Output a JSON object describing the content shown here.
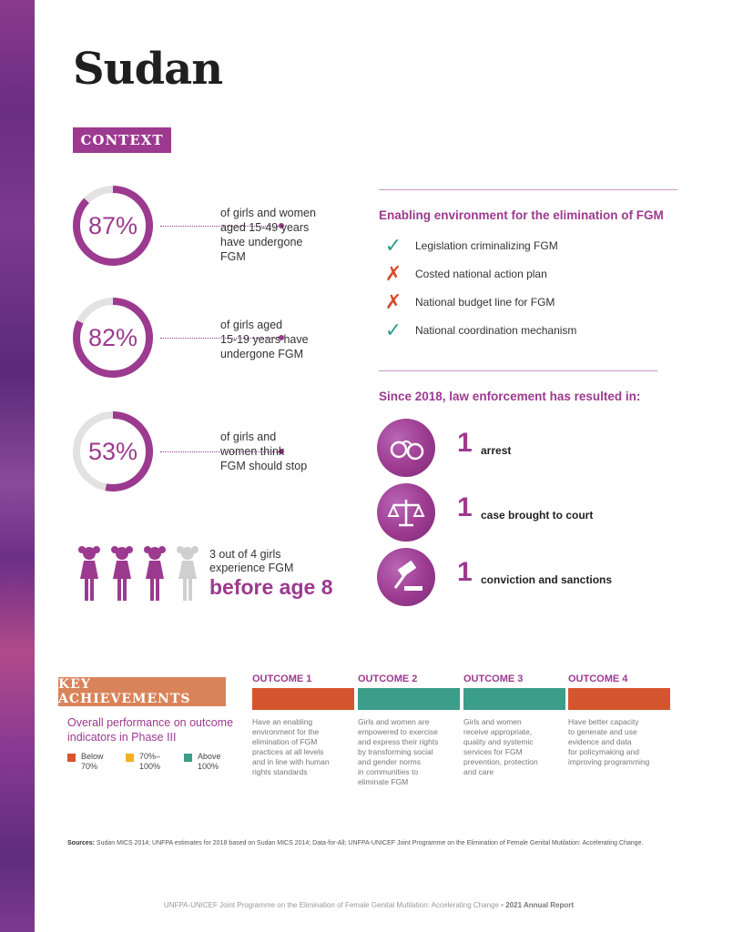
{
  "page": {
    "title": "Sudan"
  },
  "context": {
    "tag": "CONTEXT",
    "stats": [
      {
        "percent": "87%",
        "fraction": 0.87,
        "text": "of girls and women\naged 15-49 years\nhave undergone\nFGM"
      },
      {
        "percent": "82%",
        "fraction": 0.82,
        "text": "of girls aged\n15-19 years have\nundergone FGM"
      },
      {
        "percent": "53%",
        "fraction": 0.53,
        "text": "of girls and\nwomen think\nFGM should stop"
      }
    ],
    "girls": {
      "caption": "3 out of 4 girls\nexperience FGM",
      "emphasis": "before age 8",
      "highlighted_count": 3,
      "total": 4
    }
  },
  "enabling_environment": {
    "heading": "Enabling environment for the elimination of FGM",
    "items": [
      {
        "label": "Legislation criminalizing FGM",
        "status": "yes",
        "icon": "check-icon"
      },
      {
        "label": "Costed national action plan",
        "status": "no",
        "icon": "cross-icon"
      },
      {
        "label": "National budget line for FGM",
        "status": "no",
        "icon": "cross-icon"
      },
      {
        "label": "National coordination mechanism",
        "status": "yes",
        "icon": "check-icon"
      }
    ]
  },
  "law_enforcement": {
    "heading": "Since 2018, law enforcement has resulted in:",
    "items": [
      {
        "number": "1",
        "label": "arrest",
        "icon": "handcuffs-icon"
      },
      {
        "number": "1",
        "label": "case brought to court",
        "icon": "scales-icon"
      },
      {
        "number": "1",
        "label": "conviction and sanctions",
        "icon": "gavel-icon"
      }
    ]
  },
  "key_achievements": {
    "tag": "KEY ACHIEVEMENTS",
    "performance_title": "Overall performance on outcome indicators in Phase III",
    "legend": [
      {
        "label": "Below\n70%",
        "color": "#d4552e"
      },
      {
        "label": "70%–\n100%",
        "color": "#f2b21f"
      },
      {
        "label": "Above\n100%",
        "color": "#3a9e8a"
      }
    ],
    "outcomes": [
      {
        "title": "OUTCOME 1",
        "color": "#d4552e",
        "status": "below-70",
        "text": "Have an enabling\nenvironment for the\nelimination of FGM\npractices at all levels\nand in line with human\nrights standards"
      },
      {
        "title": "OUTCOME 2",
        "color": "#3a9e8a",
        "status": "above-100",
        "text": "Girls and women are\nempowered to exercise\nand express their rights\nby transforming social\nand gender norms\nin communities to\neliminate FGM"
      },
      {
        "title": "OUTCOME 3",
        "color": "#3a9e8a",
        "status": "above-100",
        "text": "Girls and women\nreceive appropriate,\nquality and systemic\nservices for FGM\nprevention, protection\nand care"
      },
      {
        "title": "OUTCOME 4",
        "color": "#d4552e",
        "status": "below-70",
        "text": "Have better capacity\nto generate and use\nevidence and data\nfor policymaking and\nimproving programming"
      }
    ]
  },
  "sources": {
    "label": "Sources:",
    "text": "Sudan MICS 2014; UNFPA estimates for 2018 based on Sudan MICS 2014; Data-for-All; UNFPA-UNICEF Joint Programme on the Elimination of Female Genital Mutilation: Accelerating Change."
  },
  "footer": {
    "text": "UNFPA-UNICEF Joint Programme on the Elimination of Female Genital Mutilation: Accelerating Change",
    "separator": "•",
    "report": "2021 Annual Report"
  },
  "colors": {
    "purple": "#9c3a8f",
    "teal": "#3a9e8a",
    "orange_red": "#d4552e",
    "yellow": "#f2b21f",
    "ring_track": "#e2e2e2"
  }
}
